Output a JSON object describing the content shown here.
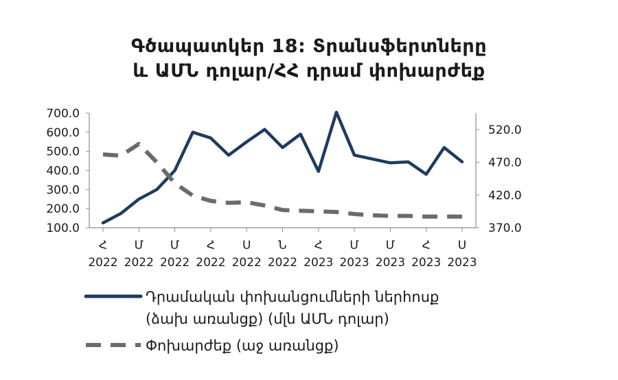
{
  "chart_data": {
    "type": "line",
    "title_lines": [
      "Գծապատկեր 18: Տրանսֆերտները",
      "և ԱՄՆ դոլար/ՀՀ դրամ փոխարժեք"
    ],
    "x": [
      {
        "top": "Հ",
        "bottom": "2022"
      },
      {
        "top": "",
        "bottom": ""
      },
      {
        "top": "Մ",
        "bottom": "2022"
      },
      {
        "top": "",
        "bottom": ""
      },
      {
        "top": "Մ",
        "bottom": "2022"
      },
      {
        "top": "",
        "bottom": ""
      },
      {
        "top": "Հ",
        "bottom": "2022"
      },
      {
        "top": "",
        "bottom": ""
      },
      {
        "top": "Ս",
        "bottom": "2022"
      },
      {
        "top": "",
        "bottom": ""
      },
      {
        "top": "Ն",
        "bottom": "2022"
      },
      {
        "top": "",
        "bottom": ""
      },
      {
        "top": "Հ",
        "bottom": "2023"
      },
      {
        "top": "",
        "bottom": ""
      },
      {
        "top": "Մ",
        "bottom": "2023"
      },
      {
        "top": "",
        "bottom": ""
      },
      {
        "top": "Մ",
        "bottom": "2023"
      },
      {
        "top": "",
        "bottom": ""
      },
      {
        "top": "Հ",
        "bottom": "2023"
      },
      {
        "top": "",
        "bottom": ""
      },
      {
        "top": "Ս",
        "bottom": "2023"
      }
    ],
    "y_left": {
      "min": 100,
      "max": 700,
      "ticks": [
        "700.0",
        "600.0",
        "500.0",
        "400.0",
        "300.0",
        "200.0",
        "100.0"
      ]
    },
    "y_right": {
      "min": 370,
      "max": 545,
      "ticks": [
        "520.0",
        "470.0",
        "420.0",
        "370.0"
      ]
    },
    "series": [
      {
        "name": "Դրամական փոխանցումների ներհոսք",
        "name_line2": "(ձախ առանցք) (մլն ԱՄՆ դոլար)",
        "axis": "left",
        "color": "#1f3a5f",
        "style": "solid",
        "values": [
          125,
          175,
          250,
          300,
          400,
          600,
          570,
          480,
          550,
          615,
          520,
          590,
          395,
          705,
          480,
          460,
          440,
          445,
          380,
          520,
          445
        ]
      },
      {
        "name": "Փոխարժեք (աջ առանցք)",
        "axis": "right",
        "color": "#6b6b6b",
        "style": "dashed",
        "values": [
          482,
          480,
          498,
          470,
          438,
          419,
          411,
          408,
          409,
          404,
          397,
          396,
          395,
          394,
          391,
          389,
          388,
          388,
          387,
          387,
          387
        ]
      }
    ],
    "grid": false,
    "legend": "bottom"
  }
}
